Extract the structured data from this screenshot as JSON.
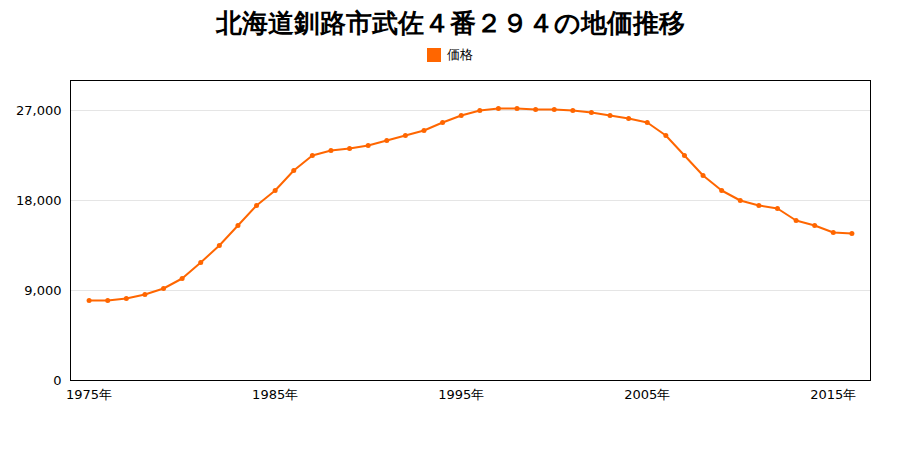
{
  "chart_data": {
    "type": "line",
    "title": "北海道釧路市武佐４番２９４の地価推移",
    "x": [
      1975,
      1976,
      1977,
      1978,
      1979,
      1980,
      1981,
      1982,
      1983,
      1984,
      1985,
      1986,
      1987,
      1988,
      1989,
      1990,
      1991,
      1992,
      1993,
      1994,
      1995,
      1996,
      1997,
      1998,
      1999,
      2000,
      2001,
      2002,
      2003,
      2004,
      2005,
      2006,
      2007,
      2008,
      2009,
      2010,
      2011,
      2012,
      2013,
      2014,
      2015,
      2016
    ],
    "series": [
      {
        "name": "価格",
        "color": "#FF6600",
        "marker": "circle",
        "values": [
          8000,
          8000,
          8200,
          8600,
          9200,
          10200,
          11800,
          13500,
          15500,
          17500,
          19000,
          21000,
          22500,
          23000,
          23200,
          23500,
          24000,
          24500,
          25000,
          25800,
          26500,
          27000,
          27200,
          27200,
          27100,
          27100,
          27000,
          26800,
          26500,
          26200,
          25800,
          24500,
          22500,
          20500,
          19000,
          18000,
          17500,
          17200,
          16000,
          15500,
          14800,
          14700
        ]
      }
    ],
    "xlim": [
      1974,
      2017
    ],
    "xticks": [
      {
        "value": 1975,
        "label": "1975年"
      },
      {
        "value": 1985,
        "label": "1985年"
      },
      {
        "value": 1995,
        "label": "1995年"
      },
      {
        "value": 2005,
        "label": "2005年"
      },
      {
        "value": 2015,
        "label": "2015年"
      }
    ],
    "ylim": [
      0,
      30000
    ],
    "yticks": [
      0,
      {
        "value": 9000,
        "label": "9,000"
      },
      {
        "value": 18000,
        "label": "18,000"
      },
      {
        "value": 27000,
        "label": "27,000"
      }
    ],
    "grid": true,
    "legend": "top"
  }
}
